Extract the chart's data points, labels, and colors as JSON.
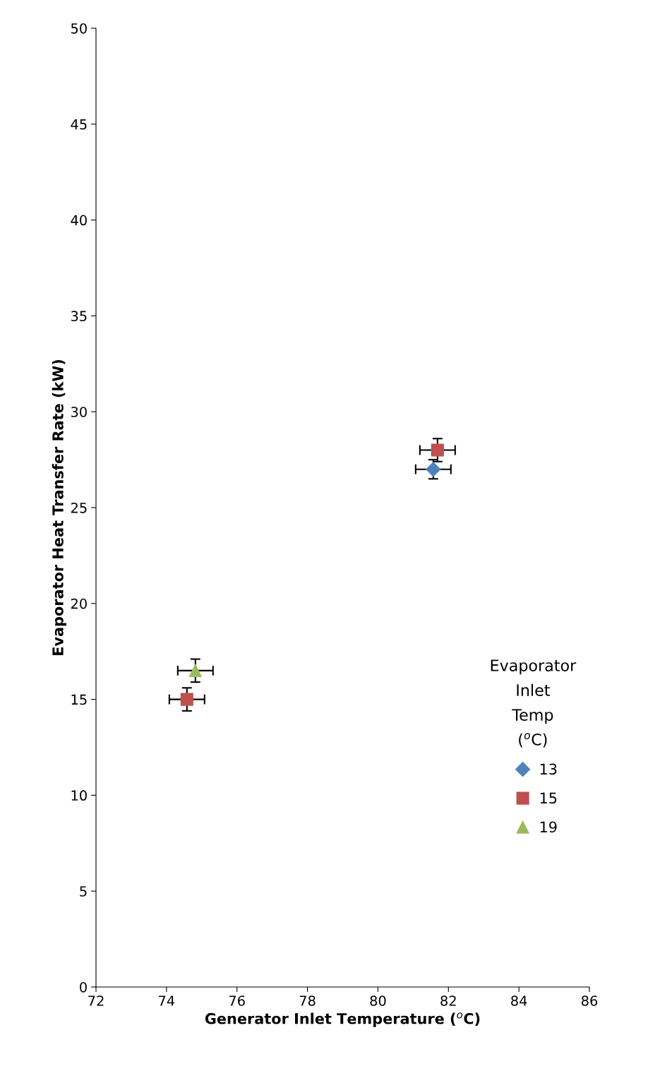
{
  "chart_data": {
    "type": "scatter",
    "xlabel": "Generator Inlet Temperature ($^{o}$C)",
    "ylabel": "Evaporator Heat Transfer Rate (kW)",
    "legend_title": "Evaporator\nInlet\nTemp\n($^{o}$C)",
    "xlim": [
      72,
      86
    ],
    "xticks": [
      72,
      74,
      76,
      78,
      80,
      82,
      84,
      86
    ],
    "ylim": [
      0,
      50
    ],
    "yticks": [
      0,
      5,
      10,
      15,
      20,
      25,
      30,
      35,
      40,
      45,
      50
    ],
    "grid": false,
    "legend": "right",
    "series": [
      {
        "name": "13",
        "color": "#4f81bd",
        "marker": "diamond",
        "x": [
          81.57
        ],
        "values": [
          27
        ],
        "errors": [
          0.5
        ],
        "xerrors": [
          0.5
        ]
      },
      {
        "name": "15",
        "color": "#c0504d",
        "marker": "square",
        "x": [
          74.58,
          81.69
        ],
        "values": [
          15,
          28
        ],
        "errors": [
          0.6,
          0.6
        ],
        "xerrors": [
          0.5,
          0.5
        ]
      },
      {
        "name": "19",
        "color": "#9bbb59",
        "marker": "triangle",
        "x": [
          74.82
        ],
        "values": [
          16.5
        ],
        "errors": [
          0.6
        ],
        "xerrors": [
          0.5
        ]
      }
    ]
  }
}
